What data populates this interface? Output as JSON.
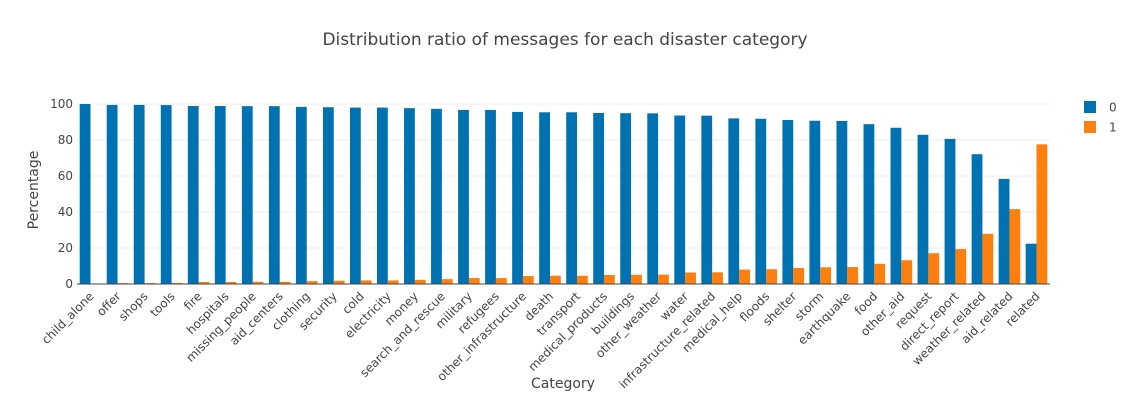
{
  "chart_data": {
    "type": "bar",
    "title": "Distribution ratio of messages for each disaster category",
    "xlabel": "Category",
    "ylabel": "Percentage",
    "ylim": [
      0,
      100
    ],
    "yticks": [
      0,
      20,
      40,
      60,
      80,
      100
    ],
    "grid": true,
    "legend_position": "top-right",
    "categories": [
      "child_alone",
      "offer",
      "shops",
      "tools",
      "fire",
      "hospitals",
      "missing_people",
      "aid_centers",
      "clothing",
      "security",
      "cold",
      "electricity",
      "money",
      "search_and_rescue",
      "military",
      "refugees",
      "other_infrastructure",
      "death",
      "transport",
      "medical_products",
      "buildings",
      "other_weather",
      "water",
      "infrastructure_related",
      "medical_help",
      "floods",
      "shelter",
      "storm",
      "earthquake",
      "food",
      "other_aid",
      "request",
      "direct_report",
      "weather_related",
      "aid_related",
      "related"
    ],
    "series": [
      {
        "name": "0",
        "color": "#0072B2",
        "values": [
          100,
          99.5,
          99.5,
          99.4,
          98.9,
          98.9,
          98.8,
          98.8,
          98.4,
          98.2,
          98.0,
          98.0,
          97.7,
          97.3,
          96.7,
          96.7,
          95.6,
          95.4,
          95.4,
          95.0,
          94.9,
          94.8,
          93.6,
          93.5,
          92.0,
          91.8,
          91.1,
          90.7,
          90.6,
          88.8,
          86.8,
          82.9,
          80.6,
          72.1,
          58.4,
          22.4
        ]
      },
      {
        "name": "1",
        "color": "#FF7F0E",
        "values": [
          0,
          0.5,
          0.5,
          0.6,
          1.1,
          1.1,
          1.2,
          1.2,
          1.6,
          1.8,
          2.0,
          2.0,
          2.3,
          2.7,
          3.3,
          3.3,
          4.4,
          4.6,
          4.6,
          5.0,
          5.1,
          5.2,
          6.4,
          6.5,
          8.0,
          8.2,
          8.9,
          9.3,
          9.4,
          11.2,
          13.2,
          17.1,
          19.4,
          27.9,
          41.6,
          77.6
        ]
      }
    ]
  }
}
